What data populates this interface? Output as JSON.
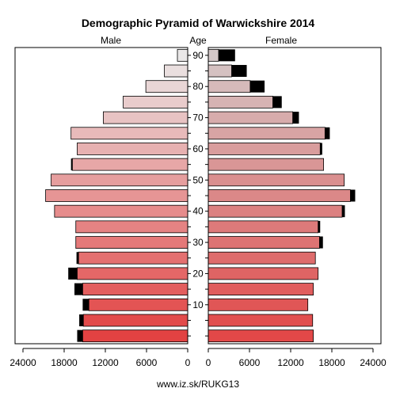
{
  "chart_data": {
    "type": "bar",
    "title": "Demographic Pyramid of Warwickshire 2014",
    "left_header": "Male",
    "center_header": "Age",
    "right_header": "Female",
    "source": "www.iz.sk/RUKG13",
    "male_ticks": [
      "24000",
      "18000",
      "12000",
      "6000",
      "0"
    ],
    "female_ticks": [
      "0",
      "6000",
      "12000",
      "18000",
      "24000"
    ],
    "age_labels": [
      "10",
      "20",
      "30",
      "40",
      "50",
      "60",
      "70",
      "80",
      "90"
    ],
    "xlim": [
      0,
      24000
    ],
    "age_groups": [
      "0-4",
      "5-9",
      "10-14",
      "15-19",
      "20-24",
      "25-29",
      "30-34",
      "35-39",
      "40-44",
      "45-49",
      "50-54",
      "55-59",
      "60-64",
      "65-69",
      "70-74",
      "75-79",
      "80-84",
      "85-89",
      "90+"
    ],
    "series": [
      {
        "name": "Male",
        "values": [
          15300,
          15200,
          14400,
          15300,
          16100,
          15900,
          16300,
          16300,
          19400,
          20700,
          19900,
          16800,
          16100,
          17000,
          12300,
          9400,
          6100,
          3400,
          1500
        ],
        "excess": [
          800,
          600,
          900,
          1200,
          1300,
          300,
          0,
          0,
          0,
          0,
          0,
          200,
          0,
          0,
          0,
          0,
          0,
          0,
          0
        ]
      },
      {
        "name": "Female",
        "values": [
          15300,
          15200,
          14500,
          15300,
          16000,
          15600,
          16200,
          16000,
          19500,
          20700,
          19800,
          16800,
          16300,
          17000,
          12300,
          9400,
          6100,
          3400,
          1500
        ],
        "excess": [
          0,
          0,
          0,
          0,
          0,
          0,
          500,
          300,
          400,
          700,
          0,
          0,
          300,
          700,
          900,
          1300,
          2100,
          2200,
          2400
        ]
      }
    ]
  }
}
